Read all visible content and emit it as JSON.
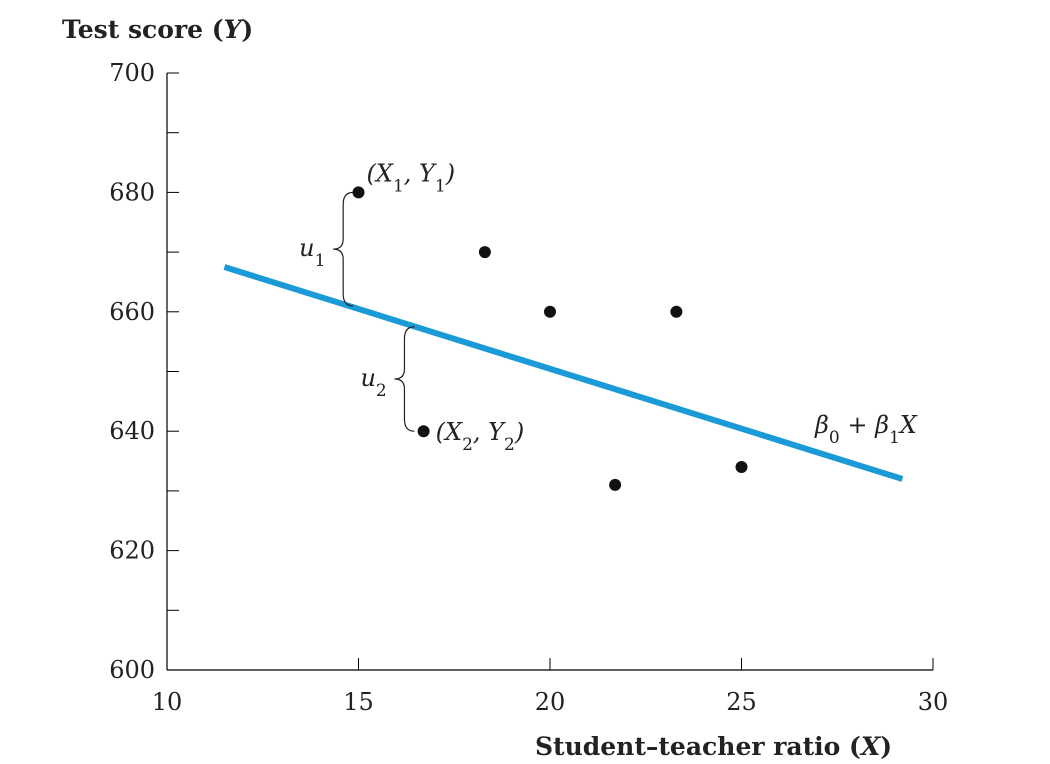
{
  "chart_data": {
    "type": "scatter",
    "title": "",
    "ylabel": "Test score (Y)",
    "xlabel": "Student–teacher ratio (X)",
    "xlim": [
      10,
      30
    ],
    "ylim": [
      600,
      700
    ],
    "x_ticks": [
      10,
      15,
      20,
      25,
      30
    ],
    "y_ticks": [
      600,
      620,
      640,
      660,
      680,
      700
    ],
    "points": [
      {
        "x": 15.0,
        "y": 680
      },
      {
        "x": 16.7,
        "y": 640
      },
      {
        "x": 18.3,
        "y": 670
      },
      {
        "x": 20.0,
        "y": 660
      },
      {
        "x": 21.7,
        "y": 631
      },
      {
        "x": 23.3,
        "y": 660
      },
      {
        "x": 25.0,
        "y": 634
      }
    ],
    "regression_line": {
      "label": "β0 + β1X",
      "x_start": 11.5,
      "y_start": 667.5,
      "x_end": 29.2,
      "y_end": 632,
      "color": "#1a9ad6"
    },
    "annotations": [
      {
        "text": "(X1, Y1)",
        "point_index": 0
      },
      {
        "text": "(X2, Y2)",
        "point_index": 1
      },
      {
        "text": "u1",
        "brace_x": 14.6,
        "y_from": 661,
        "y_to": 680
      },
      {
        "text": "u2",
        "brace_x": 16.2,
        "y_from": 640,
        "y_to": 657.5
      }
    ],
    "grid": false
  }
}
